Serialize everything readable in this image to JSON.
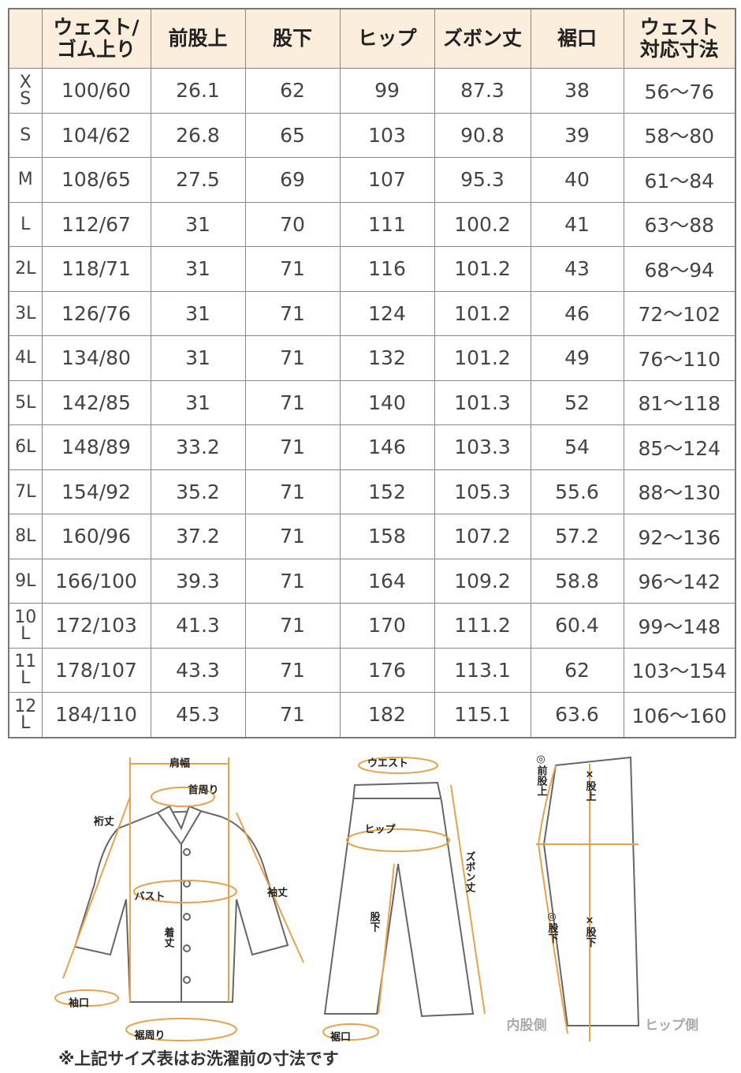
{
  "table": {
    "header": [
      "ウェスト/\nゴム上り",
      "前股上",
      "股下",
      "ヒップ",
      "ズボン丈",
      "裾口",
      "ウェスト\n対応寸法"
    ],
    "rows": [
      [
        "XS",
        "100/60",
        "26.1",
        "62",
        "99",
        "87.3",
        "38",
        "56～76"
      ],
      [
        "S",
        "104/62",
        "26.8",
        "65",
        "103",
        "90.8",
        "39",
        "58～80"
      ],
      [
        "M",
        "108/65",
        "27.5",
        "69",
        "107",
        "95.3",
        "40",
        "61～84"
      ],
      [
        "L",
        "112/67",
        "31",
        "70",
        "111",
        "100.2",
        "41",
        "63～88"
      ],
      [
        "2L",
        "118/71",
        "31",
        "71",
        "116",
        "101.2",
        "43",
        "68～94"
      ],
      [
        "3L",
        "126/76",
        "31",
        "71",
        "124",
        "101.2",
        "46",
        "72～102"
      ],
      [
        "4L",
        "134/80",
        "31",
        "71",
        "132",
        "101.2",
        "49",
        "76～110"
      ],
      [
        "5L",
        "142/85",
        "31",
        "71",
        "140",
        "101.3",
        "52",
        "81～118"
      ],
      [
        "6L",
        "148/89",
        "33.2",
        "71",
        "146",
        "103.3",
        "54",
        "85～124"
      ],
      [
        "7L",
        "154/92",
        "35.2",
        "71",
        "152",
        "105.3",
        "55.6",
        "88～130"
      ],
      [
        "8L",
        "160/96",
        "37.2",
        "71",
        "158",
        "107.2",
        "57.2",
        "92～136"
      ],
      [
        "9L",
        "166/100",
        "39.3",
        "71",
        "164",
        "109.2",
        "58.8",
        "96～142"
      ],
      [
        "10L",
        "172/103",
        "41.3",
        "71",
        "170",
        "111.2",
        "60.4",
        "99～148"
      ],
      [
        "11L",
        "178/107",
        "43.3",
        "71",
        "176",
        "113.1",
        "62",
        "103～154"
      ],
      [
        "12L",
        "184/110",
        "45.3",
        "71",
        "182",
        "115.1",
        "63.6",
        "106～160"
      ]
    ]
  },
  "diagram": {
    "labels": [
      "肩幅",
      "首周り",
      "裄丈",
      "袖丈",
      "バスト",
      "着丈",
      "袖口",
      "裾周り",
      "ウエスト",
      "ヒップ",
      "ズボン丈",
      "股下",
      "裾口",
      "◎前股上",
      "×股上",
      "◎股下",
      "×股下",
      "内股側",
      "ヒップ側"
    ]
  },
  "footnote": "※上記サイズ表はお洗濯前の寸法です"
}
